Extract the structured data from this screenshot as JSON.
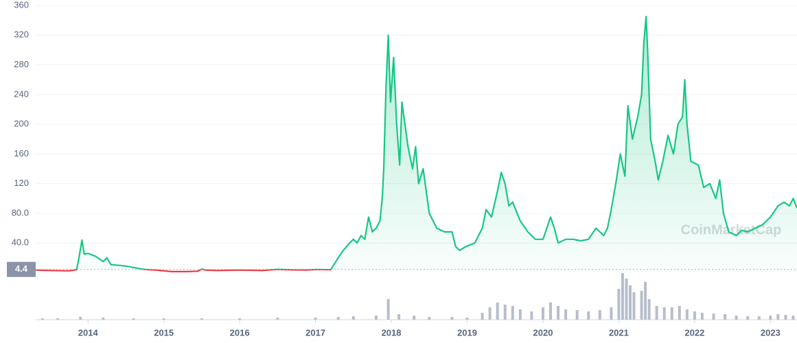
{
  "chart_data": {
    "type": "line",
    "watermark": "CoinMarketCap",
    "color": "#16c784",
    "below_color": "#ea3943",
    "volume_color": "#b8bdcc",
    "reference_line": 4.4,
    "grid": true,
    "xlim": [
      2013.31,
      2023.35
    ],
    "xticks": [
      2014,
      2015,
      2016,
      2017,
      2018,
      2019,
      2020,
      2021,
      2022,
      2023
    ],
    "ylim": [
      0,
      360
    ],
    "yticks": [
      {
        "value": 40,
        "label": "40.0"
      },
      {
        "value": 80,
        "label": "80.0"
      },
      120,
      160,
      200,
      240,
      280,
      320,
      360
    ],
    "x": [
      2013.31,
      2013.5,
      2013.75,
      2013.85,
      2013.88,
      2013.92,
      2013.95,
      2014.0,
      2014.1,
      2014.2,
      2014.25,
      2014.3,
      2014.4,
      2014.5,
      2014.6,
      2014.7,
      2014.8,
      2014.9,
      2015.0,
      2015.1,
      2015.3,
      2015.45,
      2015.5,
      2015.55,
      2015.7,
      2015.9,
      2016.0,
      2016.3,
      2016.5,
      2016.7,
      2016.9,
      2017.0,
      2017.2,
      2017.25,
      2017.35,
      2017.45,
      2017.5,
      2017.55,
      2017.6,
      2017.65,
      2017.7,
      2017.75,
      2017.8,
      2017.85,
      2017.88,
      2017.9,
      2017.93,
      2017.96,
      2017.99,
      2018.03,
      2018.07,
      2018.11,
      2018.14,
      2018.18,
      2018.22,
      2018.28,
      2018.32,
      2018.36,
      2018.42,
      2018.5,
      2018.6,
      2018.7,
      2018.8,
      2018.85,
      2018.9,
      2018.98,
      2019.1,
      2019.2,
      2019.25,
      2019.32,
      2019.4,
      2019.45,
      2019.5,
      2019.55,
      2019.6,
      2019.7,
      2019.8,
      2019.9,
      2020.0,
      2020.1,
      2020.15,
      2020.2,
      2020.3,
      2020.4,
      2020.5,
      2020.6,
      2020.7,
      2020.8,
      2020.85,
      2020.9,
      2020.96,
      2021.02,
      2021.08,
      2021.12,
      2021.18,
      2021.25,
      2021.3,
      2021.33,
      2021.36,
      2021.38,
      2021.42,
      2021.48,
      2021.52,
      2021.58,
      2021.65,
      2021.72,
      2021.78,
      2021.84,
      2021.87,
      2021.9,
      2021.95,
      2022.05,
      2022.12,
      2022.2,
      2022.28,
      2022.33,
      2022.38,
      2022.45,
      2022.55,
      2022.62,
      2022.7,
      2022.8,
      2022.9,
      2023.0,
      2023.1,
      2023.18,
      2023.25,
      2023.3,
      2023.35
    ],
    "series": [
      {
        "values": [
          3.5,
          3,
          2.5,
          4,
          20,
          44,
          25,
          26,
          22,
          15,
          20,
          11,
          10,
          9,
          7,
          5,
          4,
          3.5,
          2.5,
          1.5,
          1.5,
          2,
          5,
          3.5,
          3,
          3.3,
          3.5,
          3,
          4.5,
          3.8,
          3.7,
          4.3,
          4,
          12,
          28,
          40,
          45,
          40,
          50,
          45,
          75,
          55,
          60,
          70,
          100,
          140,
          250,
          320,
          230,
          290,
          200,
          145,
          230,
          200,
          170,
          140,
          170,
          120,
          140,
          80,
          60,
          55,
          55,
          35,
          30,
          35,
          40,
          60,
          85,
          75,
          110,
          135,
          120,
          90,
          95,
          70,
          55,
          45,
          45,
          75,
          60,
          40,
          45,
          45,
          43,
          45,
          60,
          50,
          60,
          85,
          120,
          160,
          130,
          225,
          180,
          210,
          240,
          310,
          345,
          300,
          180,
          150,
          125,
          150,
          185,
          160,
          200,
          210,
          260,
          200,
          150,
          145,
          115,
          120,
          100,
          125,
          80,
          55,
          50,
          57,
          55,
          60,
          65,
          75,
          90,
          95,
          90,
          100,
          87
        ]
      }
    ],
    "volume": {
      "x": [
        2013.4,
        2013.6,
        2013.9,
        2014.2,
        2014.6,
        2015.0,
        2015.5,
        2016.0,
        2016.5,
        2017.0,
        2017.3,
        2017.5,
        2017.8,
        2017.96,
        2018.1,
        2018.3,
        2018.5,
        2018.8,
        2019.0,
        2019.2,
        2019.3,
        2019.4,
        2019.5,
        2019.6,
        2019.7,
        2019.85,
        2020.0,
        2020.1,
        2020.2,
        2020.3,
        2020.45,
        2020.6,
        2020.75,
        2020.9,
        2021.0,
        2021.05,
        2021.1,
        2021.15,
        2021.2,
        2021.3,
        2021.35,
        2021.4,
        2021.5,
        2021.6,
        2021.7,
        2021.8,
        2021.9,
        2022.0,
        2022.1,
        2022.25,
        2022.4,
        2022.55,
        2022.7,
        2022.85,
        2023.0,
        2023.1,
        2023.2,
        2023.3
      ],
      "values": [
        2,
        2,
        4,
        3,
        2,
        2,
        2,
        2,
        3,
        3,
        4,
        5,
        6,
        30,
        8,
        6,
        4,
        4,
        3,
        10,
        18,
        25,
        22,
        20,
        15,
        12,
        18,
        25,
        20,
        15,
        14,
        12,
        14,
        18,
        45,
        68,
        60,
        50,
        40,
        42,
        55,
        30,
        20,
        18,
        18,
        20,
        15,
        12,
        10,
        9,
        8,
        6,
        5,
        5,
        6,
        8,
        7,
        6
      ]
    }
  }
}
